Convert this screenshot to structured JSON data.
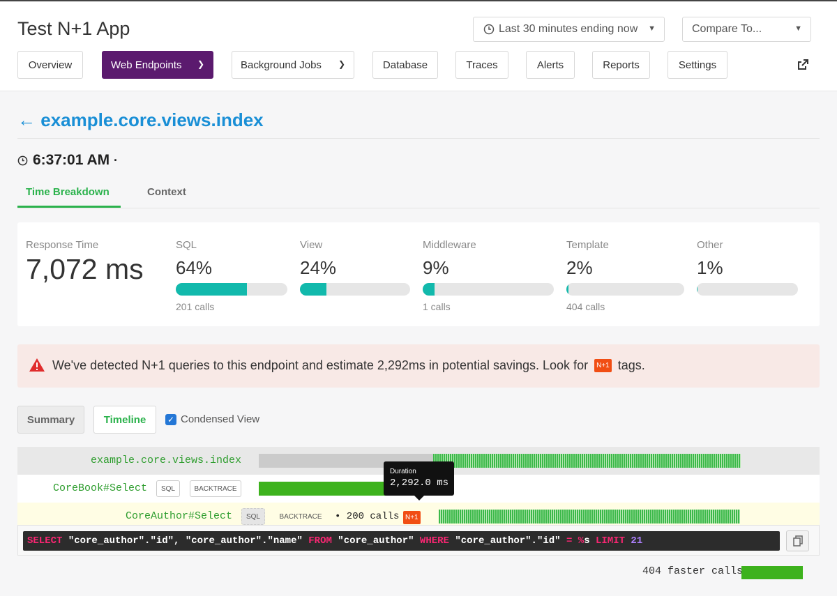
{
  "header": {
    "app_title": "Test N+1 App",
    "time_range": "Last 30 minutes ending now",
    "compare": "Compare To...",
    "nav": [
      "Overview",
      "Web Endpoints",
      "Background Jobs",
      "Database",
      "Traces",
      "Alerts",
      "Reports",
      "Settings"
    ],
    "active_nav": "Web Endpoints"
  },
  "page": {
    "back_arrow": "←",
    "endpoint": "example.core.views.index",
    "timestamp": "6:37:01 AM",
    "timestamp_suffix": "·",
    "tabs": [
      "Time Breakdown",
      "Context"
    ],
    "active_tab": "Time Breakdown"
  },
  "breakdown": {
    "response_label": "Response Time",
    "response_value": "7,072 ms",
    "metrics": [
      {
        "label": "SQL",
        "value": "64%",
        "fraction": 0.64,
        "calls": "201 calls"
      },
      {
        "label": "View",
        "value": "24%",
        "fraction": 0.24,
        "calls": ""
      },
      {
        "label": "Middleware",
        "value": "9%",
        "fraction": 0.09,
        "calls": "1 calls"
      },
      {
        "label": "Template",
        "value": "2%",
        "fraction": 0.02,
        "calls": "404 calls"
      },
      {
        "label": "Other",
        "value": "1%",
        "fraction": 0.01,
        "calls": ""
      }
    ]
  },
  "alert": {
    "text_before": "We've detected N+1 queries to this endpoint and estimate 2,292ms in potential savings. Look for",
    "tag": "N+1",
    "text_after": "tags."
  },
  "timeline": {
    "tabs": [
      "Summary",
      "Timeline"
    ],
    "active_tab": "Timeline",
    "condensed_label": "Condensed View",
    "condensed_checked": true,
    "rows": [
      {
        "name": "example.core.views.index"
      },
      {
        "name": "CoreBook#Select",
        "sql_btn": "SQL",
        "backtrace_btn": "BACKTRACE"
      },
      {
        "name": "CoreAuthor#Select",
        "sql_btn": "SQL",
        "backtrace_btn": "BACKTRACE",
        "calls": "• 200 calls",
        "tag": "N+1"
      }
    ],
    "tooltip": {
      "title": "Duration",
      "value": "2,292.0 ms"
    },
    "faster_calls": "404 faster calls"
  },
  "sql": {
    "tokens": [
      {
        "t": "SELECT",
        "k": "kw"
      },
      {
        "t": " \"core_author\".\"id\", \"core_author\".\"name\" ",
        "k": ""
      },
      {
        "t": "FROM",
        "k": "kw"
      },
      {
        "t": " \"core_author\" ",
        "k": ""
      },
      {
        "t": "WHERE",
        "k": "kw"
      },
      {
        "t": " \"core_author\".\"id\" ",
        "k": ""
      },
      {
        "t": "=",
        "k": "kw"
      },
      {
        "t": " ",
        "k": ""
      },
      {
        "t": "%",
        "k": "kw"
      },
      {
        "t": "s ",
        "k": ""
      },
      {
        "t": "LIMIT",
        "k": "kw"
      },
      {
        "t": " ",
        "k": ""
      },
      {
        "t": "21",
        "k": "num"
      }
    ]
  },
  "colors": {
    "brand_purple": "#5b1a6e",
    "accent_green": "#2bb24c",
    "bar_teal": "#12b9ac",
    "link_blue": "#1a8fd6",
    "n1_orange": "#f14e14"
  }
}
